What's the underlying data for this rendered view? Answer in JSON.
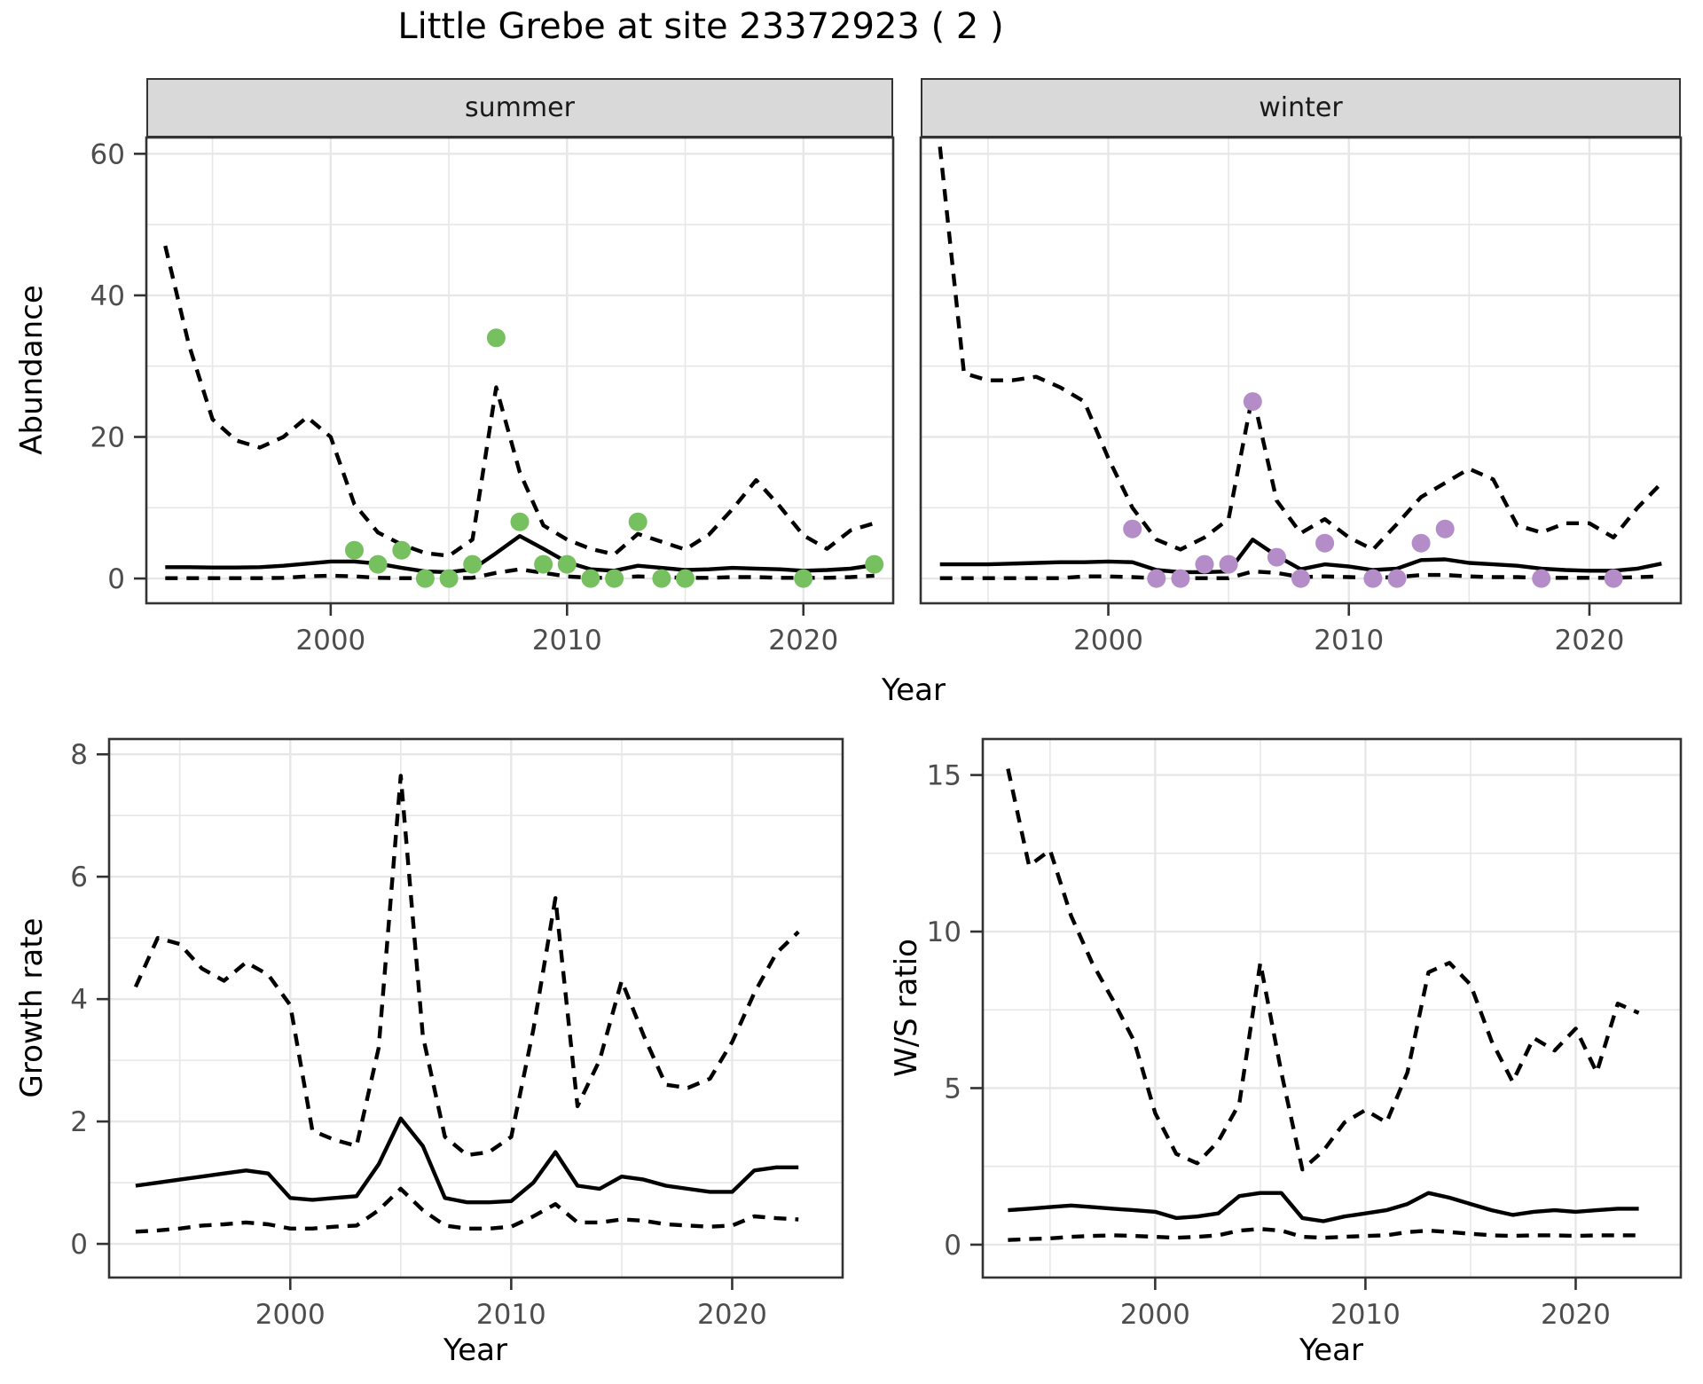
{
  "title": "Little Grebe at site 23372923 ( 2 )",
  "colors": {
    "observed_summer": "#76C060",
    "observed_winter": "#B48CC8",
    "line": "#000000",
    "strip_bg": "#D9D9D9",
    "strip_text": "#1A1A1A",
    "grid": "#E7E7E7",
    "border": "#333333",
    "tick_text": "#4D4D4D"
  },
  "chart_data": [
    {
      "id": "abundance-summer",
      "type": "line",
      "facet_label": "summer",
      "xlabel": "Year",
      "ylabel": "Abundance",
      "xlim": [
        1992.2,
        2023.8
      ],
      "ylim": [
        -3.5,
        62.3
      ],
      "xticks": [
        2000,
        2010,
        2020
      ],
      "yticks": [
        0,
        20,
        40,
        60
      ],
      "xminor": [
        1995,
        2005,
        2015
      ],
      "yminor": [
        10,
        30,
        50
      ],
      "show_y_labels": true,
      "grid": true,
      "legend": "none",
      "years": [
        1993,
        1994,
        1995,
        1996,
        1997,
        1998,
        1999,
        2000,
        2001,
        2002,
        2003,
        2004,
        2005,
        2006,
        2007,
        2008,
        2009,
        2010,
        2011,
        2012,
        2013,
        2014,
        2015,
        2016,
        2017,
        2018,
        2019,
        2020,
        2021,
        2022,
        2023
      ],
      "series": [
        {
          "name": "upper_ci",
          "style": "dashed",
          "values": [
            47,
            33,
            22.5,
            19.5,
            18.5,
            20,
            22.8,
            20,
            10.5,
            6.5,
            4.8,
            3.6,
            3.2,
            5.5,
            27,
            15,
            7.5,
            5.5,
            4.2,
            3.4,
            6.3,
            5.2,
            4.1,
            6.2,
            9.8,
            13.9,
            10.2,
            6.1,
            4.2,
            6.8,
            7.8
          ]
        },
        {
          "name": "lower_ci",
          "style": "dashed",
          "values": [
            0.05,
            0.05,
            0.05,
            0.05,
            0.05,
            0.1,
            0.3,
            0.4,
            0.3,
            0.1,
            0.05,
            0.05,
            0.05,
            0.1,
            0.8,
            1.3,
            0.8,
            0.3,
            0.1,
            0.1,
            0.3,
            0.2,
            0.1,
            0.1,
            0.2,
            0.2,
            0.1,
            0.1,
            0.1,
            0.2,
            0.4
          ]
        },
        {
          "name": "median",
          "style": "solid",
          "values": [
            1.6,
            1.6,
            1.55,
            1.55,
            1.6,
            1.8,
            2.1,
            2.4,
            2.4,
            2.1,
            1.5,
            1.0,
            0.9,
            1.3,
            3.6,
            6.0,
            4.2,
            2.3,
            1.3,
            1.1,
            1.8,
            1.5,
            1.2,
            1.3,
            1.5,
            1.4,
            1.3,
            1.1,
            1.2,
            1.4,
            1.9
          ]
        }
      ],
      "points": {
        "name": "observed",
        "color": "#76C060",
        "x": [
          2001,
          2002,
          2003,
          2004,
          2005,
          2006,
          2007,
          2008,
          2009,
          2010,
          2011,
          2012,
          2013,
          2014,
          2015,
          2020,
          2023
        ],
        "y": [
          4,
          2,
          4,
          0,
          0,
          2,
          34,
          8,
          2,
          2,
          0,
          0,
          8,
          0,
          0,
          0,
          2
        ]
      }
    },
    {
      "id": "abundance-winter",
      "type": "line",
      "facet_label": "winter",
      "xlabel": "Year",
      "ylabel": "Abundance",
      "xlim": [
        1992.2,
        2023.8
      ],
      "ylim": [
        -3.5,
        62.3
      ],
      "xticks": [
        2000,
        2010,
        2020
      ],
      "yticks": [
        0,
        20,
        40,
        60
      ],
      "xminor": [
        1995,
        2005,
        2015
      ],
      "yminor": [
        10,
        30,
        50
      ],
      "show_y_labels": false,
      "grid": true,
      "legend": "none",
      "years": [
        1993,
        1994,
        1995,
        1996,
        1997,
        1998,
        1999,
        2000,
        2001,
        2002,
        2003,
        2004,
        2005,
        2006,
        2007,
        2008,
        2009,
        2010,
        2011,
        2012,
        2013,
        2014,
        2015,
        2016,
        2017,
        2018,
        2019,
        2020,
        2021,
        2022,
        2023
      ],
      "series": [
        {
          "name": "upper_ci",
          "style": "dashed",
          "values": [
            61,
            29,
            28,
            28,
            28.5,
            27,
            25,
            17,
            10,
            5.5,
            4.1,
            5.8,
            8.4,
            26,
            11,
            6.4,
            8.4,
            5.8,
            4.1,
            7.7,
            11.5,
            13.5,
            15.5,
            14,
            7.5,
            6.5,
            7.8,
            7.8,
            5.8,
            10,
            13.5
          ]
        },
        {
          "name": "lower_ci",
          "style": "dashed",
          "values": [
            0.05,
            0.05,
            0.05,
            0.05,
            0.05,
            0.05,
            0.3,
            0.3,
            0.2,
            0.05,
            0.05,
            0.05,
            0.05,
            1.0,
            0.8,
            0.2,
            0.3,
            0.2,
            0.1,
            0.2,
            0.5,
            0.5,
            0.3,
            0.2,
            0.2,
            0.1,
            0.1,
            0.1,
            0.1,
            0.2,
            0.3
          ]
        },
        {
          "name": "median",
          "style": "solid",
          "values": [
            2.0,
            2.0,
            2.0,
            2.1,
            2.2,
            2.3,
            2.3,
            2.4,
            2.3,
            1.2,
            0.9,
            0.9,
            1.0,
            5.5,
            3.2,
            1.3,
            2.0,
            1.7,
            1.2,
            1.4,
            2.6,
            2.7,
            2.2,
            2.0,
            1.8,
            1.4,
            1.2,
            1.1,
            1.1,
            1.4,
            2.1
          ]
        }
      ],
      "points": {
        "name": "observed",
        "color": "#B48CC8",
        "x": [
          2001,
          2002,
          2003,
          2004,
          2005,
          2006,
          2007,
          2008,
          2009,
          2011,
          2012,
          2013,
          2014,
          2018,
          2021
        ],
        "y": [
          7,
          0,
          0,
          2,
          2,
          25,
          3,
          0,
          5,
          0,
          0,
          5,
          7,
          0,
          0
        ]
      }
    },
    {
      "id": "growth-rate",
      "type": "line",
      "facet_label": "",
      "xlabel": "Year",
      "ylabel": "Growth rate",
      "xlim": [
        1991.8,
        2025.0
      ],
      "ylim": [
        -0.55,
        8.25
      ],
      "xticks": [
        2000,
        2010,
        2020
      ],
      "yticks": [
        0,
        2,
        4,
        6,
        8
      ],
      "xminor": [
        1995,
        2005,
        2015
      ],
      "yminor": [
        1,
        3,
        5,
        7
      ],
      "show_y_labels": true,
      "grid": true,
      "legend": "none",
      "years": [
        1993,
        1994,
        1995,
        1996,
        1997,
        1998,
        1999,
        2000,
        2001,
        2002,
        2003,
        2004,
        2005,
        2006,
        2007,
        2008,
        2009,
        2010,
        2011,
        2012,
        2013,
        2014,
        2015,
        2016,
        2017,
        2018,
        2019,
        2020,
        2021,
        2022,
        2023
      ],
      "series": [
        {
          "name": "upper_ci",
          "style": "dashed",
          "values": [
            4.2,
            5.0,
            4.9,
            4.5,
            4.3,
            4.6,
            4.4,
            3.9,
            1.85,
            1.7,
            1.6,
            3.2,
            7.65,
            3.4,
            1.75,
            1.45,
            1.5,
            1.75,
            3.5,
            5.65,
            2.25,
            3.0,
            4.3,
            3.4,
            2.6,
            2.55,
            2.7,
            3.3,
            4.1,
            4.75,
            5.1
          ]
        },
        {
          "name": "lower_ci",
          "style": "dashed",
          "values": [
            0.2,
            0.22,
            0.25,
            0.3,
            0.32,
            0.35,
            0.32,
            0.25,
            0.25,
            0.28,
            0.3,
            0.55,
            0.9,
            0.55,
            0.3,
            0.25,
            0.25,
            0.28,
            0.45,
            0.65,
            0.35,
            0.35,
            0.4,
            0.38,
            0.32,
            0.3,
            0.28,
            0.3,
            0.45,
            0.42,
            0.4
          ]
        },
        {
          "name": "median",
          "style": "solid",
          "values": [
            0.95,
            1.0,
            1.05,
            1.1,
            1.15,
            1.2,
            1.15,
            0.75,
            0.72,
            0.75,
            0.78,
            1.3,
            2.05,
            1.6,
            0.75,
            0.68,
            0.68,
            0.7,
            1.0,
            1.5,
            0.95,
            0.9,
            1.1,
            1.05,
            0.95,
            0.9,
            0.85,
            0.85,
            1.2,
            1.25,
            1.25
          ]
        }
      ],
      "points": null
    },
    {
      "id": "ws-ratio",
      "type": "line",
      "facet_label": "",
      "xlabel": "Year",
      "ylabel": "W/S ratio",
      "xlim": [
        1991.8,
        2025.0
      ],
      "ylim": [
        -1.05,
        16.15
      ],
      "xticks": [
        2000,
        2010,
        2020
      ],
      "yticks": [
        0,
        5,
        10,
        15
      ],
      "xminor": [
        1995,
        2005,
        2015
      ],
      "yminor": [
        2.5,
        7.5,
        12.5
      ],
      "show_y_labels": true,
      "grid": true,
      "legend": "none",
      "years": [
        1993,
        1994,
        1995,
        1996,
        1997,
        1998,
        1999,
        2000,
        2001,
        2002,
        2003,
        2004,
        2005,
        2006,
        2007,
        2008,
        2009,
        2010,
        2011,
        2012,
        2013,
        2014,
        2015,
        2016,
        2017,
        2018,
        2019,
        2020,
        2021,
        2022,
        2023
      ],
      "series": [
        {
          "name": "upper_ci",
          "style": "dashed",
          "values": [
            15.2,
            12.1,
            12.6,
            10.5,
            9.0,
            7.8,
            6.5,
            4.2,
            2.9,
            2.6,
            3.3,
            4.5,
            9.0,
            5.5,
            2.4,
            3.0,
            3.9,
            4.3,
            3.9,
            5.5,
            8.7,
            9.0,
            8.3,
            6.5,
            5.2,
            6.6,
            6.2,
            6.9,
            5.5,
            7.7,
            7.4
          ]
        },
        {
          "name": "lower_ci",
          "style": "dashed",
          "values": [
            0.15,
            0.18,
            0.2,
            0.25,
            0.28,
            0.3,
            0.28,
            0.25,
            0.22,
            0.25,
            0.3,
            0.45,
            0.5,
            0.45,
            0.25,
            0.22,
            0.25,
            0.28,
            0.3,
            0.4,
            0.45,
            0.4,
            0.35,
            0.3,
            0.28,
            0.3,
            0.3,
            0.28,
            0.3,
            0.3,
            0.3
          ]
        },
        {
          "name": "median",
          "style": "solid",
          "values": [
            1.1,
            1.15,
            1.2,
            1.25,
            1.2,
            1.15,
            1.1,
            1.05,
            0.85,
            0.9,
            1.0,
            1.55,
            1.65,
            1.65,
            0.85,
            0.75,
            0.9,
            1.0,
            1.1,
            1.3,
            1.65,
            1.5,
            1.3,
            1.1,
            0.95,
            1.05,
            1.1,
            1.05,
            1.1,
            1.15,
            1.15
          ]
        }
      ],
      "points": null
    }
  ]
}
